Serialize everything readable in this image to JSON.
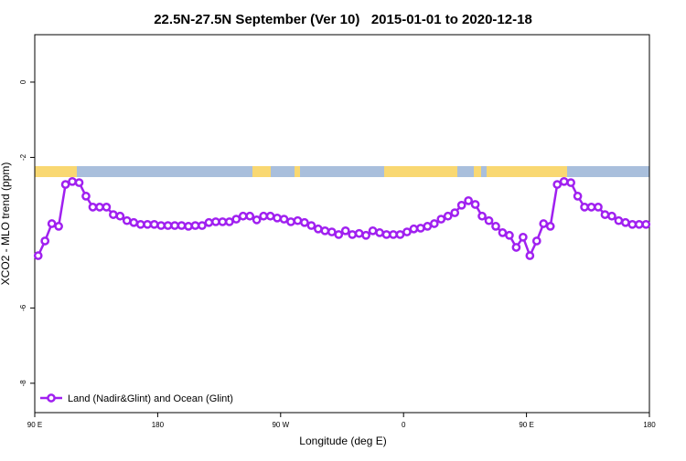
{
  "chart_data": {
    "type": "line",
    "title": "22.5N-27.5N September (Ver 10)   2015-01-01 to 2020-12-18",
    "x_label": "Longitude (deg E)",
    "y_label": "XCO2 - MLO trend (ppm)",
    "xlim": [
      90,
      540
    ],
    "xticks": [
      {
        "value": 90,
        "label": "90 E"
      },
      180,
      {
        "value": 270,
        "label": "90 W"
      },
      {
        "value": 360,
        "label": "0"
      },
      {
        "value": 450,
        "label": "90 E"
      },
      {
        "value": 540,
        "label": "180"
      }
    ],
    "ylim": [
      -8.78,
      1.26
    ],
    "yticks": [
      0,
      -2,
      -6,
      -8
    ],
    "legend": "bottom-left",
    "x": [
      92.5,
      97.5,
      102.5,
      107.5,
      112.5,
      117.5,
      122.5,
      127.5,
      132.5,
      137.5,
      142.5,
      147.5,
      152.5,
      157.5,
      162.5,
      167.5,
      172.5,
      177.5,
      182.5,
      187.5,
      192.5,
      197.5,
      202.5,
      207.5,
      212.5,
      217.5,
      222.5,
      227.5,
      232.5,
      237.5,
      242.5,
      247.5,
      252.5,
      257.5,
      262.5,
      267.5,
      272.5,
      277.5,
      282.5,
      287.5,
      292.5,
      297.5,
      302.5,
      307.5,
      312.5,
      317.5,
      322.5,
      327.5,
      332.5,
      337.5,
      342.5,
      347.5,
      352.5,
      357.5,
      362.5,
      367.5,
      372.5,
      377.5,
      382.5,
      387.5,
      392.5,
      397.5,
      402.5,
      407.5,
      412.5,
      417.5,
      422.5,
      427.5,
      432.5,
      437.5,
      442.5,
      447.5,
      452.5,
      457.5,
      462.5,
      467.5,
      472.5,
      477.5,
      482.5,
      487.5,
      492.5,
      497.5,
      502.5,
      507.5,
      512.5,
      517.5,
      522.5,
      527.5,
      532.5,
      537.5
    ],
    "series": [
      {
        "name": "Land (Nadir&Glint) and Ocean (Glint)",
        "color": "#a020f0",
        "values": [
          -4.61,
          -4.22,
          -3.76,
          -3.83,
          -2.72,
          -2.64,
          -2.67,
          -3.03,
          -3.32,
          -3.32,
          -3.32,
          -3.52,
          -3.56,
          -3.68,
          -3.73,
          -3.78,
          -3.78,
          -3.78,
          -3.81,
          -3.81,
          -3.81,
          -3.81,
          -3.83,
          -3.81,
          -3.81,
          -3.73,
          -3.71,
          -3.71,
          -3.71,
          -3.64,
          -3.56,
          -3.56,
          -3.66,
          -3.56,
          -3.56,
          -3.61,
          -3.64,
          -3.71,
          -3.68,
          -3.73,
          -3.81,
          -3.9,
          -3.95,
          -3.98,
          -4.05,
          -3.95,
          -4.05,
          -4.02,
          -4.07,
          -3.95,
          -4.0,
          -4.05,
          -4.05,
          -4.05,
          -3.98,
          -3.9,
          -3.88,
          -3.83,
          -3.76,
          -3.64,
          -3.56,
          -3.47,
          -3.27,
          -3.15,
          -3.25,
          -3.56,
          -3.68,
          -3.83,
          -4.0,
          -4.07,
          -4.39,
          -4.12,
          -4.61,
          -4.22,
          -3.76,
          -3.83,
          -2.72,
          -2.64,
          -2.67,
          -3.03,
          -3.32,
          -3.32,
          -3.32,
          -3.52,
          -3.56,
          -3.68,
          -3.73,
          -3.78,
          -3.78,
          -3.78
        ]
      }
    ]
  }
}
